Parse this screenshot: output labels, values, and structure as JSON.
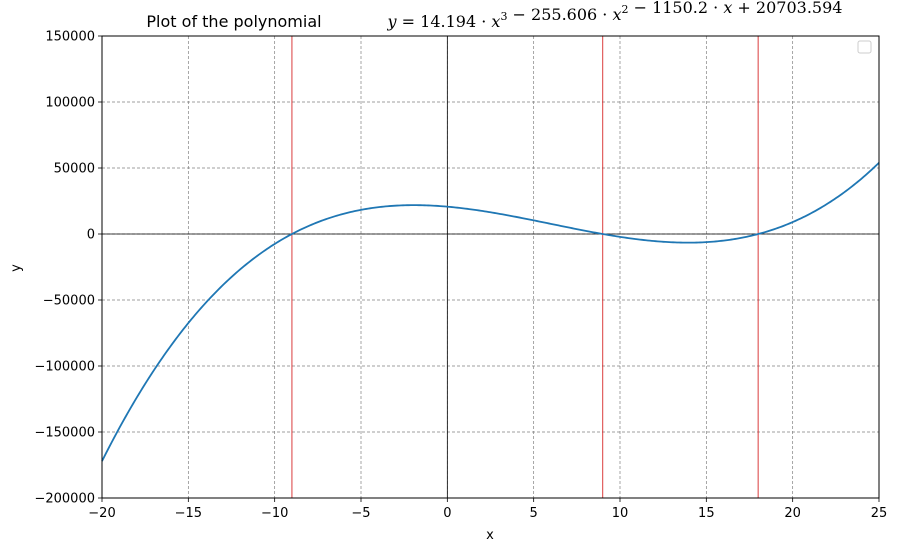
{
  "chart_data": {
    "type": "line",
    "title": "Plot of the polynomial",
    "equation": {
      "lhs": "y = ",
      "terms": [
        {
          "coef": "14.194 · ",
          "var": "x",
          "exp": "3",
          "op": " − "
        },
        {
          "coef": "255.606 · ",
          "var": "x",
          "exp": "2",
          "op": " − "
        },
        {
          "coef": "1150.2 · ",
          "var": "x",
          "exp": "",
          "op": " + "
        },
        {
          "coef": "20703.594",
          "var": "",
          "exp": "",
          "op": ""
        }
      ]
    },
    "coefficients": [
      14.194,
      -255.606,
      -1150.2,
      20703.594
    ],
    "xlabel": "x",
    "ylabel": "y",
    "xlim": [
      -20,
      25
    ],
    "ylim": [
      -200000,
      150000
    ],
    "xticks": [
      -20,
      -15,
      -10,
      -5,
      0,
      5,
      10,
      15,
      20,
      25
    ],
    "xtick_labels": [
      "−20",
      "−15",
      "−10",
      "−5",
      "0",
      "5",
      "10",
      "15",
      "20",
      "25"
    ],
    "yticks": [
      -200000,
      -150000,
      -100000,
      -50000,
      0,
      50000,
      100000,
      150000
    ],
    "ytick_labels": [
      "−200000",
      "−150000",
      "−100000",
      "−50000",
      "0",
      "50000",
      "100000",
      "150000"
    ],
    "roots": [
      -9,
      9,
      18
    ],
    "grid": true,
    "legend": "top-right",
    "colors": {
      "curve": "#1f77b4",
      "root_lines": "#d62728",
      "grid": "#808080",
      "zero_axes": "#000000"
    }
  }
}
